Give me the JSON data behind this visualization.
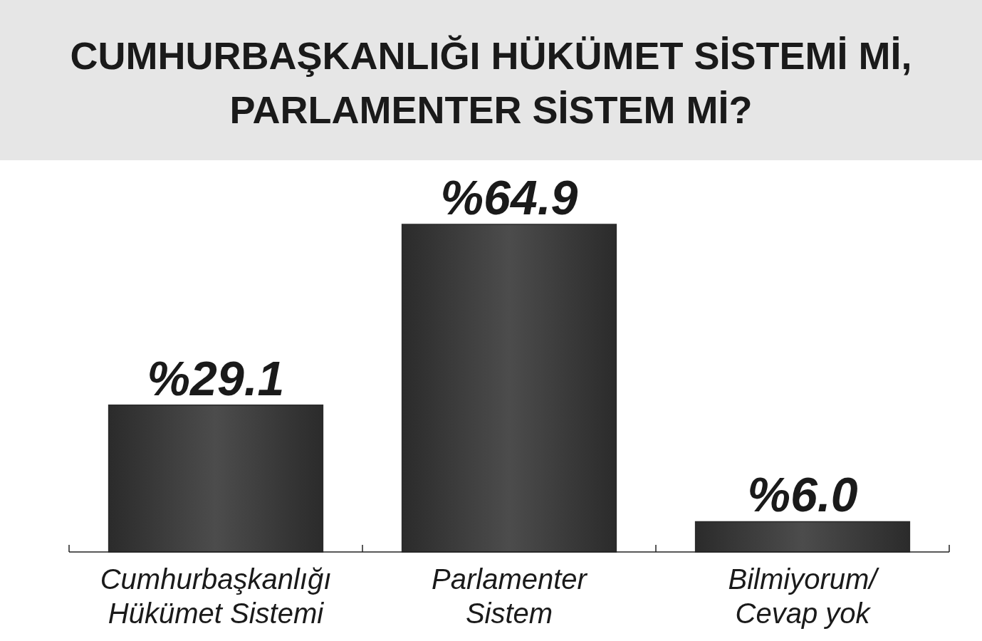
{
  "chart_data": {
    "type": "bar",
    "title": "CUMHURBAŞKANLIĞI HÜKÜMET SİSTEMİ Mİ, PARLAMENTER SİSTEM Mİ?",
    "categories": [
      "Cumhurbaşkanlığı Hükümet Sistemi",
      "Parlamenter Sistem",
      "Bilmiyorum/\nCevap yok"
    ],
    "values": [
      29.1,
      64.9,
      6.0
    ],
    "value_labels": [
      "%29.1",
      "%64.9",
      "%6.0"
    ],
    "color": "#2b2b2b"
  }
}
